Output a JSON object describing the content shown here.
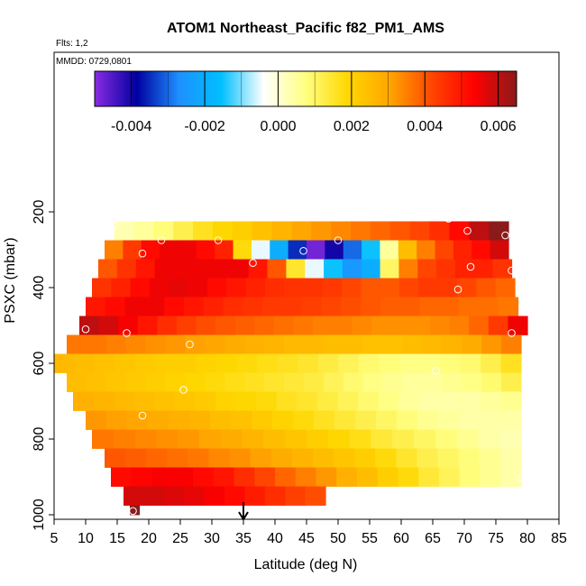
{
  "chart_data": {
    "type": "heatmap",
    "title": "ATOM1 Northeast_Pacific f82_PM1_AMS",
    "flights_note": "Flts: 1,2",
    "date_note": "MMDD: 0729,0801",
    "xlabel": "Latitude (deg N)",
    "ylabel": "PSXC (mbar)",
    "xlim": [
      5,
      85
    ],
    "ylim": [
      1000,
      0
    ],
    "x_ticks": [
      5,
      10,
      15,
      20,
      25,
      30,
      35,
      40,
      45,
      50,
      55,
      60,
      65,
      70,
      75,
      80,
      85
    ],
    "y_ticks": [
      200,
      400,
      600,
      800,
      1000
    ],
    "colorbar": {
      "range": [
        -0.005,
        0.0065
      ],
      "ticks": [
        -0.004,
        -0.002,
        0.0,
        0.002,
        0.004,
        0.006
      ],
      "tick_labels": [
        "-0.004",
        "-0.002",
        "0.000",
        "0.002",
        "0.004",
        "0.006"
      ],
      "colors": [
        "#8a2be2",
        "#0000a0",
        "#1e90ff",
        "#00bfff",
        "#ffffff",
        "#ffff80",
        "#ffd700",
        "#ffa500",
        "#ff4500",
        "#ff0000",
        "#8b1a1a"
      ]
    },
    "marker": {
      "latitude": 35
    },
    "rows": [
      {
        "p": [
          225,
          275
        ],
        "lat": [
          14.5,
          77.0
        ],
        "v": [
          0.0003,
          0.0005,
          0.0008,
          0.0012,
          0.0016,
          0.0019,
          0.0021,
          0.0024,
          0.0027,
          0.003,
          0.0032,
          0.0034,
          0.0036,
          0.0038,
          0.004,
          0.0042,
          0.0046,
          0.0052,
          0.006,
          0.0066
        ]
      },
      {
        "p": [
          275,
          325
        ],
        "lat": [
          13.0,
          77.0
        ],
        "v": [
          0.0035,
          0.0044,
          0.0052,
          0.0055,
          0.0055,
          0.0052,
          0.0048,
          0.0018,
          -0.0005,
          -0.002,
          -0.0035,
          -0.0048,
          -0.004,
          -0.003,
          -0.0015,
          0.0005,
          0.0025,
          0.0035,
          0.0042,
          0.0048,
          0.0052,
          0.0058
        ]
      },
      {
        "p": [
          325,
          375
        ],
        "lat": [
          12.0,
          77.5
        ],
        "v": [
          0.004,
          0.0045,
          0.005,
          0.0055,
          0.0055,
          0.0055,
          0.0055,
          0.0055,
          0.005,
          0.004,
          0.0015,
          -0.0005,
          -0.0015,
          -0.0025,
          -0.002,
          0.001,
          0.0035,
          0.0042,
          0.0045,
          0.0048,
          0.0048,
          0.0045
        ]
      },
      {
        "p": [
          375,
          425
        ],
        "lat": [
          11.0,
          78.0
        ],
        "v": [
          0.0045,
          0.0048,
          0.0052,
          0.0055,
          0.0056,
          0.0055,
          0.0052,
          0.005,
          0.0048,
          0.0046,
          0.0045,
          0.0045,
          0.0044,
          0.0042,
          0.004,
          0.004,
          0.0042,
          0.0044,
          0.0044,
          0.0042,
          0.004,
          0.0038
        ]
      },
      {
        "p": [
          425,
          475
        ],
        "lat": [
          10.0,
          78.5
        ],
        "v": [
          0.005,
          0.0052,
          0.0055,
          0.0055,
          0.0052,
          0.005,
          0.0048,
          0.0046,
          0.0045,
          0.0044,
          0.0044,
          0.0043,
          0.0042,
          0.0041,
          0.004,
          0.0039,
          0.0039,
          0.0038,
          0.0038,
          0.0037,
          0.0037,
          0.0036
        ]
      },
      {
        "p": [
          475,
          525
        ],
        "lat": [
          9.0,
          80.0
        ],
        "v": [
          0.006,
          0.0058,
          0.0054,
          0.005,
          0.0046,
          0.0043,
          0.0041,
          0.004,
          0.0039,
          0.0038,
          0.0037,
          0.0036,
          0.0035,
          0.0035,
          0.0034,
          0.0033,
          0.0033,
          0.0033,
          0.0034,
          0.0035,
          0.0038,
          0.0044,
          0.0055
        ]
      },
      {
        "p": [
          525,
          575
        ],
        "lat": [
          7.0,
          79.0
        ],
        "v": [
          0.0036,
          0.0036,
          0.0035,
          0.0034,
          0.0033,
          0.0032,
          0.0031,
          0.003,
          0.0029,
          0.0028,
          0.0027,
          0.0026,
          0.0026,
          0.0025,
          0.0025,
          0.0024,
          0.0024,
          0.0025,
          0.0026,
          0.0027,
          0.0029,
          0.0032,
          0.0035
        ]
      },
      {
        "p": [
          575,
          625
        ],
        "lat": [
          5.0,
          79.0
        ],
        "v": [
          0.0026,
          0.0025,
          0.0024,
          0.0023,
          0.0022,
          0.0021,
          0.0021,
          0.002,
          0.0019,
          0.0018,
          0.0017,
          0.0016,
          0.0015,
          0.0013,
          0.0011,
          0.0009,
          0.0008,
          0.0007,
          0.0007,
          0.0008,
          0.0009,
          0.0012,
          0.0016
        ]
      },
      {
        "p": [
          625,
          675
        ],
        "lat": [
          7.0,
          79.0
        ],
        "v": [
          0.0025,
          0.0024,
          0.0023,
          0.0022,
          0.0021,
          0.002,
          0.0019,
          0.0018,
          0.0017,
          0.0016,
          0.0015,
          0.0014,
          0.0013,
          0.0011,
          0.0009,
          0.0007,
          0.0006,
          0.0005,
          0.0005,
          0.0006,
          0.0007,
          0.0009,
          0.0012
        ]
      },
      {
        "p": [
          675,
          725
        ],
        "lat": [
          8.0,
          79.0
        ],
        "v": [
          0.0028,
          0.0027,
          0.0026,
          0.0025,
          0.0024,
          0.0023,
          0.0022,
          0.002,
          0.0019,
          0.0018,
          0.0016,
          0.0015,
          0.0013,
          0.0011,
          0.0009,
          0.0007,
          0.0005,
          0.0004,
          0.0004,
          0.0004,
          0.0005,
          0.0006
        ]
      },
      {
        "p": [
          725,
          775
        ],
        "lat": [
          10.0,
          79.0
        ],
        "v": [
          0.0032,
          0.0031,
          0.003,
          0.0029,
          0.0028,
          0.0027,
          0.0025,
          0.0024,
          0.0022,
          0.002,
          0.0018,
          0.0016,
          0.0014,
          0.0012,
          0.001,
          0.0008,
          0.0006,
          0.0005,
          0.0004,
          0.0004,
          0.0004
        ]
      },
      {
        "p": [
          775,
          825
        ],
        "lat": [
          11.0,
          79.0
        ],
        "v": [
          0.0036,
          0.0035,
          0.0034,
          0.0033,
          0.0032,
          0.003,
          0.0029,
          0.0027,
          0.0025,
          0.0023,
          0.0021,
          0.0019,
          0.0017,
          0.0014,
          0.0012,
          0.001,
          0.0008,
          0.0006,
          0.0004,
          0.0003
        ]
      },
      {
        "p": [
          825,
          875
        ],
        "lat": [
          13.0,
          79.0
        ],
        "v": [
          0.004,
          0.0039,
          0.0038,
          0.0037,
          0.0036,
          0.0034,
          0.0033,
          0.0031,
          0.0029,
          0.0027,
          0.0025,
          0.0023,
          0.0021,
          0.0018,
          0.0015,
          0.0012,
          0.001,
          0.0008,
          0.0006,
          0.0004
        ]
      },
      {
        "p": [
          875,
          925
        ],
        "lat": [
          14.0,
          79.0
        ],
        "v": [
          0.0052,
          0.0053,
          0.0054,
          0.0054,
          0.0052,
          0.005,
          0.0046,
          0.0042,
          0.0038,
          0.0035,
          0.0032,
          0.0028,
          0.0025,
          0.0021,
          0.0018,
          0.0014,
          0.0011,
          0.0008,
          0.0006,
          0.0004
        ]
      },
      {
        "p": [
          925,
          975
        ],
        "lat": [
          16.0,
          48.0
        ],
        "v": [
          0.0058,
          0.0058,
          0.0057,
          0.0056,
          0.0054,
          0.0052,
          0.0049,
          0.0046,
          0.0043,
          0.0041
        ]
      },
      {
        "p": [
          975,
          1000
        ],
        "lat": [
          17.0,
          18.5
        ],
        "v": [
          0.0066
        ]
      }
    ],
    "points": [
      [
        14.5,
        235
      ],
      [
        67.5,
        218
      ],
      [
        70.5,
        250
      ],
      [
        76.5,
        262
      ],
      [
        22,
        275
      ],
      [
        31,
        275
      ],
      [
        44.5,
        303
      ],
      [
        50,
        275
      ],
      [
        19,
        310
      ],
      [
        36.5,
        335
      ],
      [
        71,
        345
      ],
      [
        77.5,
        355
      ],
      [
        69,
        405
      ],
      [
        79.5,
        465
      ],
      [
        10,
        510
      ],
      [
        16.5,
        520
      ],
      [
        77.5,
        520
      ],
      [
        26.5,
        550
      ],
      [
        65.5,
        620
      ],
      [
        25.5,
        670
      ],
      [
        19,
        738
      ],
      [
        79,
        903
      ],
      [
        17.5,
        990
      ]
    ]
  }
}
